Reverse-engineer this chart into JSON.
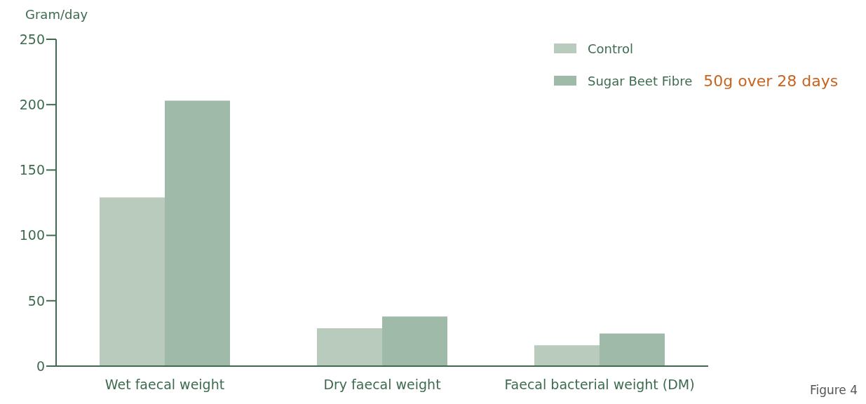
{
  "chart_data": {
    "type": "bar",
    "ylabel": "Gram/day",
    "categories": [
      "Wet faecal weight",
      "Dry faecal weight",
      "Faecal bacterial weight (DM)"
    ],
    "series": [
      {
        "name": "Control",
        "color": "#b8cbbd",
        "values": [
          129,
          29,
          16
        ]
      },
      {
        "name": "Sugar Beet Fibre",
        "color": "#a0baa9",
        "values": [
          203,
          38,
          25
        ]
      }
    ],
    "ylim": [
      0,
      250
    ],
    "yticks": [
      0,
      50,
      100,
      150,
      200,
      250
    ],
    "grid": false,
    "legend": "top right",
    "annotations": [
      "50g over 28 days",
      "Figure 4"
    ]
  }
}
